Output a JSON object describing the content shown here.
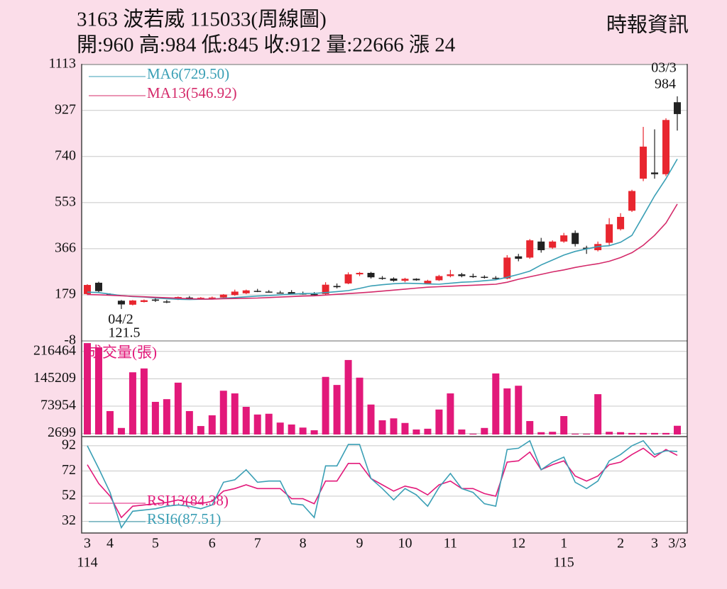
{
  "header": {
    "title": "3163 波若威 115033(周線圖)",
    "quote": "開:960 高:984 低:845 收:912 量:22666 漲 24",
    "source": "時報資訊"
  },
  "chart_data": [
    {
      "type": "candlestick",
      "categories": [
        "3",
        null,
        "4",
        null,
        null,
        null,
        "5",
        null,
        null,
        null,
        null,
        "6",
        null,
        null,
        null,
        "7",
        null,
        null,
        null,
        "8",
        null,
        null,
        null,
        null,
        "9",
        null,
        null,
        null,
        "10",
        null,
        null,
        null,
        "11",
        null,
        null,
        null,
        null,
        null,
        "12",
        null,
        null,
        null,
        "1",
        null,
        null,
        null,
        null,
        "2",
        null,
        null,
        "3",
        null,
        "3/3"
      ],
      "years": [
        "114",
        null,
        null,
        null,
        null,
        null,
        null,
        null,
        null,
        null,
        null,
        null,
        null,
        null,
        null,
        null,
        null,
        null,
        null,
        null,
        null,
        null,
        null,
        null,
        null,
        null,
        null,
        null,
        null,
        null,
        null,
        null,
        null,
        null,
        null,
        null,
        null,
        null,
        null,
        null,
        null,
        null,
        "115",
        null,
        null,
        null,
        null,
        null,
        null,
        null,
        null,
        null,
        null
      ],
      "open": [
        182,
        228,
        182,
        155,
        139,
        150,
        160,
        152,
        160,
        168,
        162,
        166,
        168,
        178,
        185,
        195,
        192,
        188,
        190,
        185,
        182,
        182,
        215,
        225,
        262,
        268,
        248,
        245,
        236,
        244,
        225,
        238,
        255,
        262,
        255,
        252,
        248,
        245,
        335,
        330,
        395,
        370,
        395,
        430,
        370,
        360,
        390,
        445,
        520,
        650,
        675,
        668,
        960
      ],
      "high": [
        222,
        232,
        185,
        158,
        158,
        160,
        165,
        158,
        172,
        174,
        170,
        172,
        182,
        200,
        200,
        203,
        198,
        195,
        198,
        192,
        190,
        230,
        225,
        270,
        272,
        272,
        255,
        250,
        248,
        246,
        240,
        260,
        280,
        268,
        265,
        258,
        255,
        340,
        345,
        405,
        410,
        400,
        430,
        440,
        378,
        395,
        490,
        510,
        605,
        860,
        850,
        895,
        984
      ],
      "low": [
        178,
        190,
        176,
        121.5,
        136,
        148,
        150,
        145,
        158,
        162,
        160,
        162,
        165,
        175,
        182,
        190,
        188,
        185,
        182,
        180,
        178,
        176,
        205,
        222,
        255,
        245,
        240,
        232,
        230,
        236,
        222,
        235,
        250,
        250,
        248,
        245,
        240,
        242,
        315,
        325,
        350,
        365,
        390,
        375,
        345,
        355,
        380,
        440,
        515,
        640,
        650,
        660,
        845
      ],
      "close": [
        219,
        194,
        178,
        140,
        156,
        157,
        155,
        150,
        170,
        165,
        167,
        168,
        180,
        192,
        197,
        194,
        190,
        186,
        183,
        184,
        181,
        220,
        210,
        262,
        268,
        250,
        245,
        236,
        244,
        238,
        236,
        255,
        262,
        255,
        252,
        248,
        245,
        330,
        325,
        400,
        360,
        395,
        420,
        385,
        365,
        385,
        465,
        495,
        600,
        780,
        668,
        888,
        912
      ],
      "up_color": "#e8262f",
      "down_color": "#222222",
      "series": [
        {
          "name": "MA6(729.50)",
          "color": "#3a9fb5",
          "values": [
            190,
            188,
            182,
            176,
            172,
            170,
            166,
            163,
            161,
            160,
            161,
            162,
            165,
            168,
            171,
            174,
            176,
            179,
            182,
            184,
            185,
            188,
            192,
            196,
            205,
            215,
            220,
            224,
            226,
            225,
            223,
            222,
            226,
            230,
            232,
            236,
            240,
            250,
            262,
            275,
            300,
            320,
            340,
            355,
            365,
            375,
            378,
            392,
            420,
            500,
            580,
            650,
            729.5
          ]
        },
        {
          "name": "MA13(546.92)",
          "color": "#d42a6a",
          "values": [
            180,
            179,
            177,
            175,
            173,
            171,
            169,
            167,
            165,
            163,
            162,
            162,
            163,
            164,
            165,
            166,
            168,
            170,
            172,
            174,
            175,
            178,
            181,
            184,
            187,
            190,
            194,
            198,
            202,
            206,
            210,
            212,
            214,
            216,
            218,
            220,
            222,
            230,
            242,
            252,
            262,
            272,
            280,
            290,
            298,
            305,
            315,
            330,
            350,
            380,
            420,
            470,
            546.92
          ]
        }
      ],
      "annotations": [
        "04/2",
        "121.5",
        "03/3",
        "984"
      ],
      "ylim": [
        -8,
        1113
      ],
      "yticks": [
        -8,
        179,
        366,
        553,
        740,
        927,
        1113
      ],
      "grid": true
    },
    {
      "type": "bar",
      "title": "成交量(張)",
      "color": "#e2197a",
      "values": [
        238000,
        227000,
        61000,
        17000,
        162000,
        172000,
        85000,
        92000,
        135000,
        61000,
        22000,
        50000,
        114000,
        107000,
        72000,
        52000,
        54000,
        31000,
        26000,
        18000,
        11000,
        150000,
        129000,
        194000,
        148000,
        78000,
        37000,
        42000,
        30000,
        13000,
        15000,
        65000,
        107000,
        13000,
        2000,
        17000,
        159000,
        120000,
        127000,
        35000,
        6000,
        7000,
        48000,
        2000,
        2000,
        105000,
        7000,
        6000,
        4000,
        4000,
        4000,
        4000,
        22666
      ],
      "ylim": [
        0,
        240000
      ],
      "yticks": [
        2699,
        73954,
        145209,
        216464
      ],
      "grid": true
    },
    {
      "type": "line",
      "series": [
        {
          "name": "RSI13(84.38)",
          "color": "#e2197a",
          "values": [
            77,
            62,
            52,
            35,
            44,
            45,
            46,
            47,
            49,
            47,
            46,
            48,
            56,
            58,
            61,
            58,
            58,
            58,
            50,
            50,
            46,
            64,
            64,
            78,
            78,
            66,
            61,
            56,
            60,
            58,
            53,
            61,
            64,
            58,
            58,
            54,
            52,
            79,
            80,
            87,
            73,
            77,
            80,
            68,
            64,
            68,
            77,
            79,
            85,
            90,
            83,
            89,
            84.38
          ]
        },
        {
          "name": "RSI6(87.51)",
          "color": "#3a9fb5",
          "values": [
            92,
            74,
            55,
            27,
            40,
            41,
            42,
            44,
            45,
            44,
            42,
            45,
            63,
            65,
            73,
            63,
            64,
            64,
            46,
            45,
            35,
            76,
            76,
            93,
            93,
            66,
            58,
            49,
            58,
            53,
            44,
            59,
            70,
            58,
            55,
            46,
            44,
            89,
            90,
            96,
            73,
            79,
            83,
            63,
            58,
            64,
            80,
            85,
            92,
            96,
            85,
            88,
            87.51
          ]
        }
      ],
      "ylim": [
        25,
        97
      ],
      "yticks": [
        32,
        52,
        72,
        92
      ],
      "grid": true
    }
  ]
}
